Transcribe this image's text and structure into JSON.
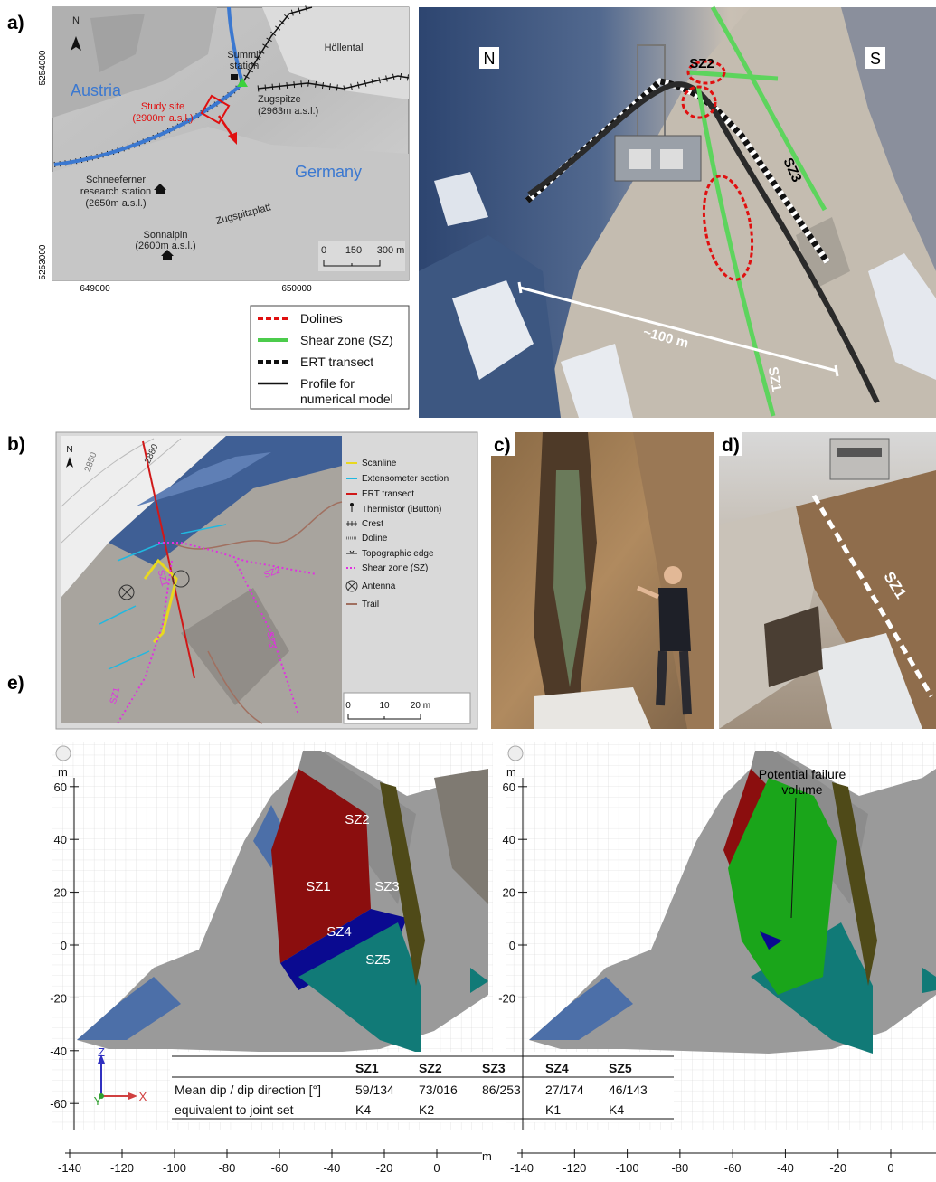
{
  "panel_labels": [
    "a)",
    "b)",
    "c)",
    "d)",
    "e)"
  ],
  "map_a": {
    "north": "N",
    "country_at": "Austria",
    "country_de": "Germany",
    "study_site": [
      "Study site",
      "(2900m a.s.l.)"
    ],
    "summit_station": [
      "Summit",
      "station"
    ],
    "zugspitze": [
      "Zugspitze",
      "(2963m a.s.l.)"
    ],
    "hoellental": "Höllental",
    "schneeferner": [
      "Schneeferner",
      "research station",
      "(2650m a.s.l.)"
    ],
    "sonnalpin": [
      "Sonnalpin",
      "(2600m a.s.l.)"
    ],
    "zugspitzplatt": "Zugspitzplatt",
    "scale": [
      0,
      150,
      "300 m"
    ],
    "northings": [
      5254000,
      5253000
    ],
    "eastings": [
      649000,
      650000
    ]
  },
  "photo_a": {
    "north": "N",
    "south": "S",
    "labels": [
      "SZ2",
      "SZ3",
      "SZ1"
    ],
    "distance": "~100 m"
  },
  "legend_a": [
    [
      "Dolines"
    ],
    [
      "Shear zone (SZ)"
    ],
    [
      "ERT transect"
    ],
    [
      "Profile for",
      "numerical model"
    ]
  ],
  "map_b": {
    "north": "N",
    "contours": [
      2850,
      2880
    ],
    "sz_labels": [
      "SZ1",
      "SZ2",
      "SZ3",
      "SZ1"
    ],
    "legend": [
      "Scanline",
      "Extensometer section",
      "ERT transect",
      "Thermistor (iButton)",
      "Crest",
      "Doline",
      "Topographic edge",
      "Shear zone (SZ)",
      "Antenna",
      "Trail"
    ],
    "scale": [
      0,
      10,
      "20 m"
    ]
  },
  "photo_d": {
    "label": "SZ1"
  },
  "panel_e": {
    "axis_unit": "m",
    "yticks_left": [
      60,
      40,
      20,
      0,
      -20,
      -40,
      -60
    ],
    "yticks_right": [
      60,
      40,
      20,
      0,
      -20
    ],
    "xticks": [
      -140,
      -120,
      -100,
      -80,
      -60,
      -40,
      -20,
      0
    ],
    "sz_labels": [
      "SZ1",
      "SZ2",
      "SZ3",
      "SZ4",
      "SZ5"
    ],
    "triad": [
      "Z",
      "Y",
      "X"
    ],
    "annotation": [
      "Potential failure",
      "volume"
    ],
    "table": {
      "header": [
        "SZ1",
        "SZ2",
        "SZ3",
        "SZ4",
        "SZ5"
      ],
      "rows": [
        {
          "label": "Mean dip / dip direction [°]",
          "cells": [
            "59/134",
            "73/016",
            "86/253",
            "27/174",
            "46/143"
          ]
        },
        {
          "label": "equivalent to joint set",
          "cells": [
            "K4",
            "K2",
            null,
            "K1",
            "K4"
          ]
        }
      ]
    }
  }
}
